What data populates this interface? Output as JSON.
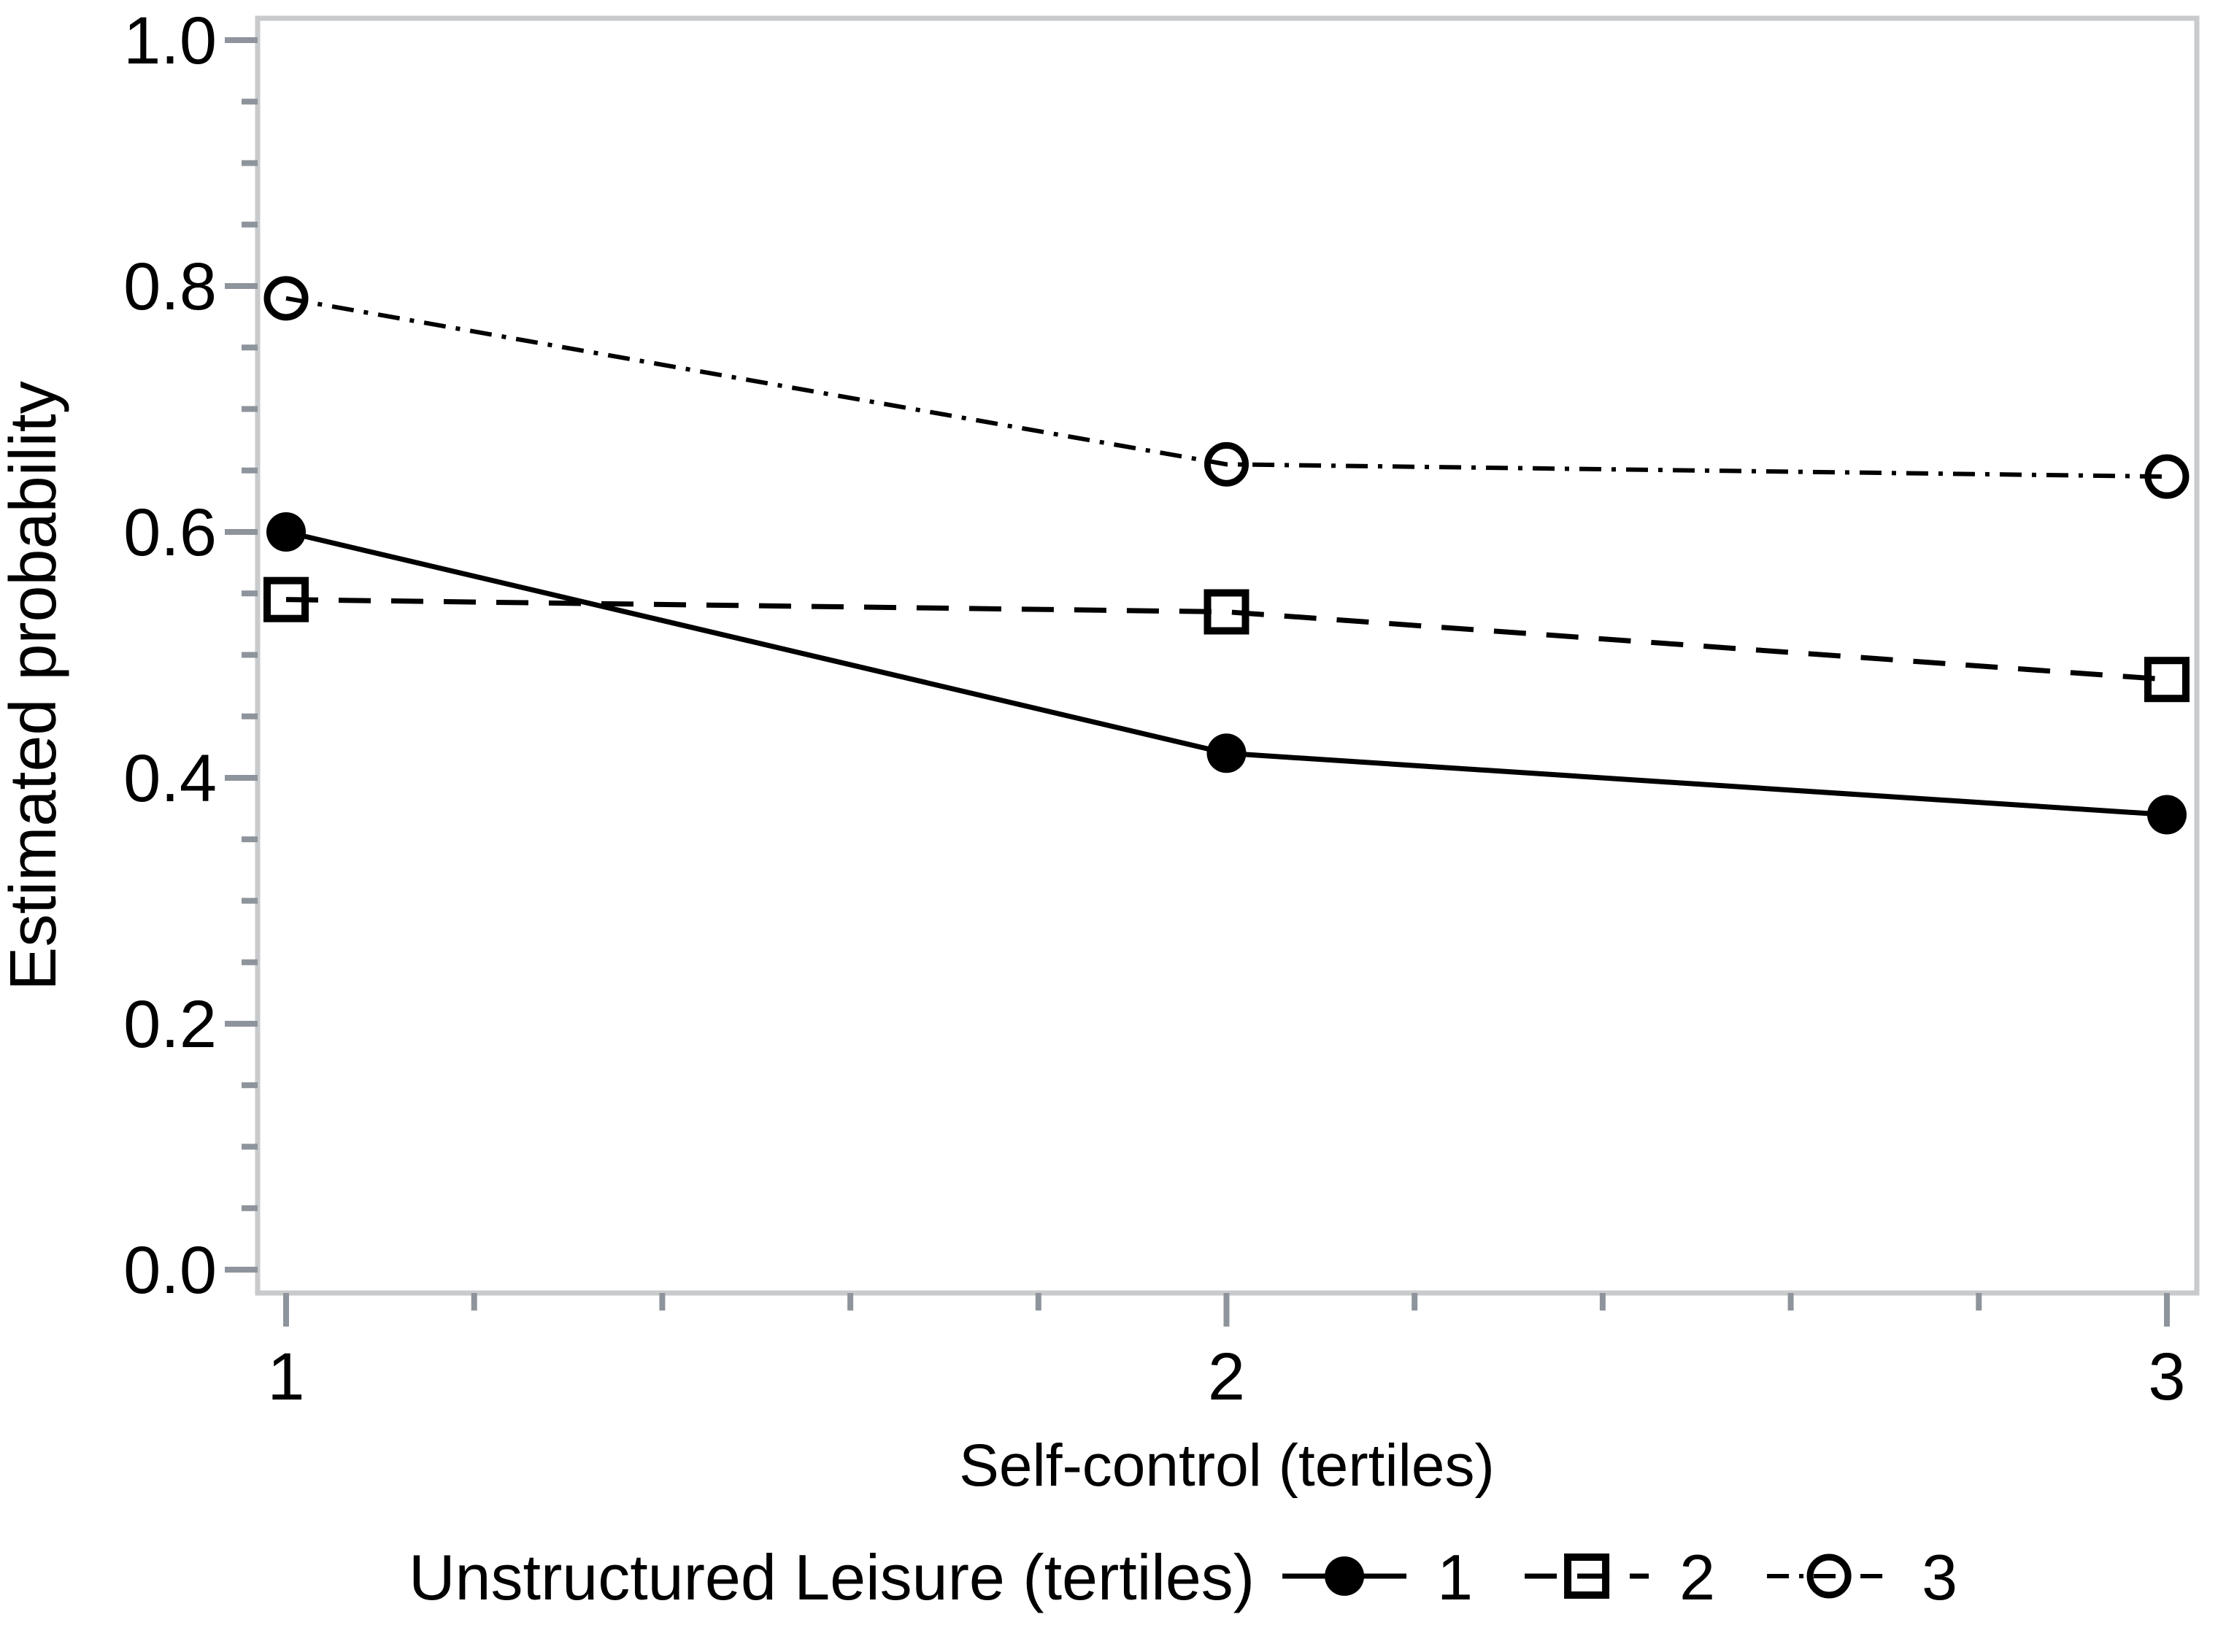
{
  "chart_data": {
    "type": "line",
    "title": "",
    "xlabel": "Self-control (tertiles)",
    "ylabel": "Estimated probability",
    "x": [
      1,
      2,
      3
    ],
    "xticks": [
      1,
      2,
      3
    ],
    "xtick_labels": [
      "1",
      "2",
      "3"
    ],
    "yticks": [
      0.0,
      0.2,
      0.4,
      0.6,
      0.8,
      1.0
    ],
    "ytick_labels": [
      "0.0",
      "0.2",
      "0.4",
      "0.6",
      "0.8",
      "1.0"
    ],
    "xlim": [
      1,
      3
    ],
    "ylim": [
      0.0,
      1.0
    ],
    "x_minor_tick_step": 0.2,
    "y_minor_tick_step": 0.05,
    "grid": "off",
    "legend_title": "Unstructured Leisure (tertiles)",
    "legend_position": "bottom-center",
    "series": [
      {
        "name": "1",
        "marker": "filled-circle",
        "line_style": "solid",
        "values": [
          0.6,
          0.42,
          0.37
        ]
      },
      {
        "name": "2",
        "marker": "open-square",
        "line_style": "dashed",
        "values": [
          0.545,
          0.535,
          0.48
        ]
      },
      {
        "name": "3",
        "marker": "open-circle",
        "line_style": "dash-dot",
        "values": [
          0.79,
          0.655,
          0.645
        ]
      }
    ],
    "colors": {
      "series_stroke": "#000000",
      "tick": "#8e949b",
      "frame": "#c8cacc",
      "text": "#000000",
      "background": "#ffffff"
    }
  }
}
